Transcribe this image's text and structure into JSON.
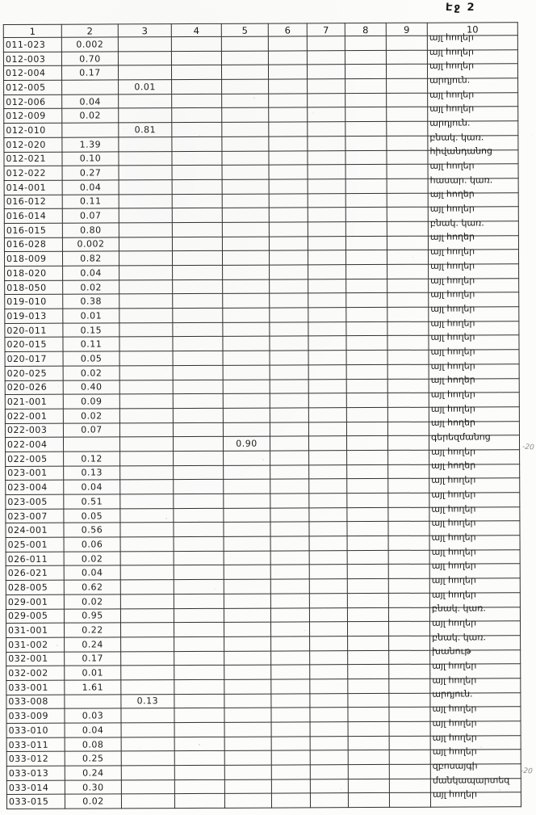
{
  "page": {
    "label": "Էջ 2"
  },
  "table": {
    "headers": [
      "1",
      "2",
      "3",
      "4",
      "5",
      "6",
      "7",
      "8",
      "9",
      "10"
    ],
    "rows": [
      [
        "011-023",
        "0.002",
        "",
        "",
        "",
        "",
        "",
        "",
        "",
        "այլ հողեր"
      ],
      [
        "012-003",
        "0.70",
        "",
        "",
        "",
        "",
        "",
        "",
        "",
        "այլ հողեր"
      ],
      [
        "012-004",
        "0.17",
        "",
        "",
        "",
        "",
        "",
        "",
        "",
        "այլ հողեր"
      ],
      [
        "012-005",
        "",
        "0.01",
        "",
        "",
        "",
        "",
        "",
        "",
        "արդյուն."
      ],
      [
        "012-006",
        "0.04",
        "",
        "",
        "",
        "",
        "",
        "",
        "",
        "այլ հողեր"
      ],
      [
        "012-009",
        "0.02",
        "",
        "",
        "",
        "",
        "",
        "",
        "",
        "այլ հողեր"
      ],
      [
        "012-010",
        "",
        "0.81",
        "",
        "",
        "",
        "",
        "",
        "",
        "արդյուն."
      ],
      [
        "012-020",
        "1.39",
        "",
        "",
        "",
        "",
        "",
        "",
        "",
        "բնակ. կառ."
      ],
      [
        "012-021",
        "0.10",
        "",
        "",
        "",
        "",
        "",
        "",
        "",
        "հիվանդանոց"
      ],
      [
        "012-022",
        "0.27",
        "",
        "",
        "",
        "",
        "",
        "",
        "",
        "այլ հողեր"
      ],
      [
        "014-001",
        "0.04",
        "",
        "",
        "",
        "",
        "",
        "",
        "",
        "հասար. կառ."
      ],
      [
        "016-012",
        "0.11",
        "",
        "",
        "",
        "",
        "",
        "",
        "",
        "այլ հողեր"
      ],
      [
        "016-014",
        "0.07",
        "",
        "",
        "",
        "",
        "",
        "",
        "",
        "այլ հողեր"
      ],
      [
        "016-015",
        "0.80",
        "",
        "",
        "",
        "",
        "",
        "",
        "",
        "բնակ. կառ."
      ],
      [
        "016-028",
        "0.002",
        "",
        "",
        "",
        "",
        "",
        "",
        "",
        "այլ հողեր"
      ],
      [
        "018-009",
        "0.82",
        "",
        "",
        "",
        "",
        "",
        "",
        "",
        "այլ հողեր"
      ],
      [
        "018-020",
        "0.04",
        "",
        "",
        "",
        "",
        "",
        "",
        "",
        "այլ հողեր"
      ],
      [
        "018-050",
        "0.02",
        "",
        "",
        "",
        "",
        "",
        "",
        "",
        "այլ հողեր"
      ],
      [
        "019-010",
        "0.38",
        "",
        "",
        "",
        "",
        "",
        "",
        "",
        "այլ հողեր"
      ],
      [
        "019-013",
        "0.01",
        "",
        "",
        "",
        "",
        "",
        "",
        "",
        "այլ հողեր"
      ],
      [
        "020-011",
        "0.15",
        "",
        "",
        "",
        "",
        "",
        "",
        "",
        "այլ հողեր"
      ],
      [
        "020-015",
        "0.11",
        "",
        "",
        "",
        "",
        "",
        "",
        "",
        "այլ հողեր"
      ],
      [
        "020-017",
        "0.05",
        "",
        "",
        "",
        "",
        "",
        "",
        "",
        "այլ հողեր"
      ],
      [
        "020-025",
        "0.02",
        "",
        "",
        "",
        "",
        "",
        "",
        "",
        "այլ հողեր"
      ],
      [
        "020-026",
        "0.40",
        "",
        "",
        "",
        "",
        "",
        "",
        "",
        "այլ հողեր"
      ],
      [
        "021-001",
        "0.09",
        "",
        "",
        "",
        "",
        "",
        "",
        "",
        "այլ հողեր"
      ],
      [
        "022-001",
        "0.02",
        "",
        "",
        "",
        "",
        "",
        "",
        "",
        "այլ հողեր"
      ],
      [
        "022-003",
        "0.07",
        "",
        "",
        "",
        "",
        "",
        "",
        "",
        "այլ հողեր"
      ],
      [
        "022-004",
        "",
        "",
        "",
        "0.90",
        "",
        "",
        "",
        "",
        "գերեզմանոց"
      ],
      [
        "022-005",
        "0.12",
        "",
        "",
        "",
        "",
        "",
        "",
        "",
        "այլ հողեր"
      ],
      [
        "023-001",
        "0.13",
        "",
        "",
        "",
        "",
        "",
        "",
        "",
        "այլ հողեր"
      ],
      [
        "023-004",
        "0.04",
        "",
        "",
        "",
        "",
        "",
        "",
        "",
        "այլ հողեր"
      ],
      [
        "023-005",
        "0.51",
        "",
        "",
        "",
        "",
        "",
        "",
        "",
        "այլ հողեր"
      ],
      [
        "023-007",
        "0.05",
        "",
        "",
        "",
        "",
        "",
        "",
        "",
        "այլ հողեր"
      ],
      [
        "024-001",
        "0.56",
        "",
        "",
        "",
        "",
        "",
        "",
        "",
        "այլ հողեր"
      ],
      [
        "025-001",
        "0.06",
        "",
        "",
        "",
        "",
        "",
        "",
        "",
        "այլ հողեր"
      ],
      [
        "026-011",
        "0.02",
        "",
        "",
        "",
        "",
        "",
        "",
        "",
        "այլ հողեր"
      ],
      [
        "026-021",
        "0.04",
        "",
        "",
        "",
        "",
        "",
        "",
        "",
        "այլ հողեր"
      ],
      [
        "028-005",
        "0.62",
        "",
        "",
        "",
        "",
        "",
        "",
        "",
        "այլ հողեր"
      ],
      [
        "029-001",
        "0.02",
        "",
        "",
        "",
        "",
        "",
        "",
        "",
        "այլ հողեր"
      ],
      [
        "029-005",
        "0.95",
        "",
        "",
        "",
        "",
        "",
        "",
        "",
        "բնակ. կառ."
      ],
      [
        "031-001",
        "0.22",
        "",
        "",
        "",
        "",
        "",
        "",
        "",
        "այլ հողեր"
      ],
      [
        "031-002",
        "0.24",
        "",
        "",
        "",
        "",
        "",
        "",
        "",
        "բնակ. կառ."
      ],
      [
        "032-001",
        "0.17",
        "",
        "",
        "",
        "",
        "",
        "",
        "",
        "խանութ"
      ],
      [
        "032-002",
        "0.01",
        "",
        "",
        "",
        "",
        "",
        "",
        "",
        "այլ հողեր"
      ],
      [
        "033-001",
        "1.61",
        "",
        "",
        "",
        "",
        "",
        "",
        "",
        "այլ հողեր"
      ],
      [
        "033-008",
        "",
        "0.13",
        "",
        "",
        "",
        "",
        "",
        "",
        "արդյուն."
      ],
      [
        "033-009",
        "0.03",
        "",
        "",
        "",
        "",
        "",
        "",
        "",
        "այլ հողեր"
      ],
      [
        "033-010",
        "0.04",
        "",
        "",
        "",
        "",
        "",
        "",
        "",
        "այլ հողեր"
      ],
      [
        "033-011",
        "0.08",
        "",
        "",
        "",
        "",
        "",
        "",
        "",
        "այլ հողեր"
      ],
      [
        "033-012",
        "0.25",
        "",
        "",
        "",
        "",
        "",
        "",
        "",
        "այլ հողեր"
      ],
      [
        "033-013",
        "0.24",
        "",
        "",
        "",
        "",
        "",
        "",
        "",
        "զբոսայգի"
      ],
      [
        "033-014",
        "0.30",
        "",
        "",
        "",
        "",
        "",
        "",
        "",
        "մանկապարտեզ"
      ],
      [
        "033-015",
        "0.02",
        "",
        "",
        "",
        "",
        "",
        "",
        "",
        "այլ հողեր"
      ]
    ]
  },
  "margin_notes": [
    {
      "text": "-20"
    },
    {
      "text": "-20"
    }
  ]
}
